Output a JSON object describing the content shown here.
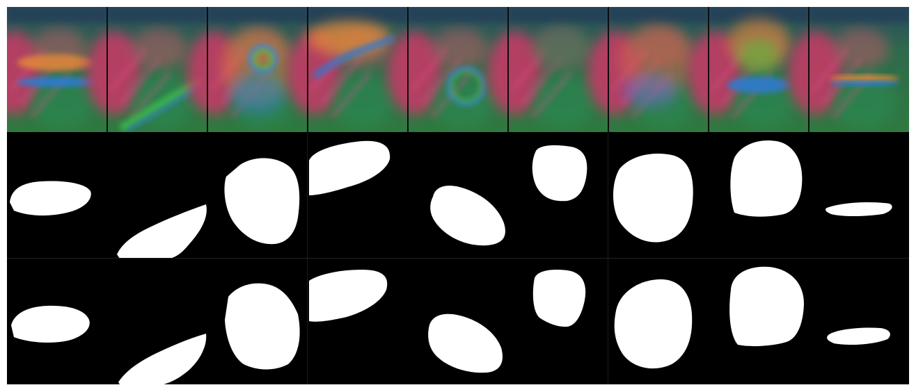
{
  "figure": {
    "rows": [
      {
        "id": "input-images",
        "kind": "image"
      },
      {
        "id": "predicted-masks",
        "kind": "mask"
      },
      {
        "id": "ground-truth-masks",
        "kind": "mask"
      }
    ],
    "columns": 9,
    "colors": {
      "background": "#000000",
      "mask": "#ffffff",
      "image_pink": "#d7406e",
      "image_green": "#2f8a45",
      "image_teal": "#2d5c64",
      "image_blue": "#2f7ad0",
      "image_orange": "#e2873a"
    },
    "image_artifacts": [
      "horizontal-blue-streak",
      "diagonal-green-streak",
      "ring",
      "blue-arc",
      "ring",
      "none",
      "none",
      "blue-blob",
      "horizontal-orange-streak"
    ]
  }
}
